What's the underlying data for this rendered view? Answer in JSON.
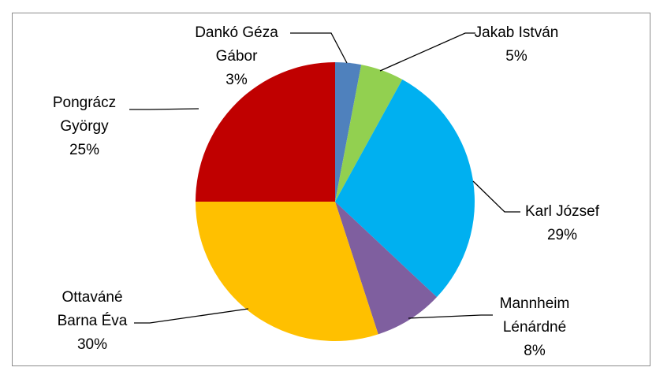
{
  "chart_data": {
    "type": "pie",
    "title": "",
    "legend": "none",
    "slices": [
      {
        "name": "Dankó Géza Gábor",
        "value": 3,
        "label_lines": [
          "Dankó Géza",
          "Gábor",
          "3%"
        ],
        "color": "#4f81bd"
      },
      {
        "name": "Jakab István",
        "value": 5,
        "label_lines": [
          "Jakab István",
          "5%"
        ],
        "color": "#92d050"
      },
      {
        "name": "Karl József",
        "value": 29,
        "label_lines": [
          "Karl József",
          "29%"
        ],
        "color": "#00b0f0"
      },
      {
        "name": "Mannheim Lénárdné",
        "value": 8,
        "label_lines": [
          "Mannheim",
          "Lénárdné",
          "8%"
        ],
        "color": "#7f5f9f"
      },
      {
        "name": "Ottaváné Barna Éva",
        "value": 30,
        "label_lines": [
          "Ottaváné",
          "Barna Éva",
          "30%"
        ],
        "color": "#ffc000"
      },
      {
        "name": "Pongrácz György",
        "value": 25,
        "label_lines": [
          "Pongrácz",
          "György",
          "25%"
        ],
        "color": "#c00000"
      }
    ]
  }
}
